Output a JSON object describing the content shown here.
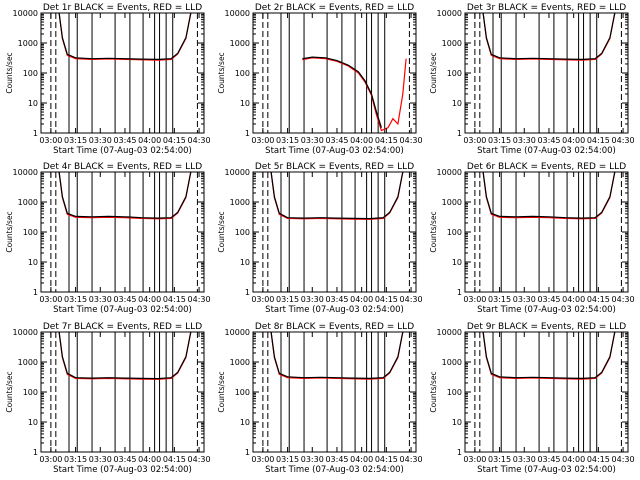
{
  "figure": {
    "x_tick_labels": [
      "03:00",
      "03:15",
      "03:30",
      "03:45",
      "04:00",
      "04:15",
      "04:30"
    ],
    "y_tick_labels": [
      "1",
      "10",
      "100",
      "1000",
      "10000"
    ],
    "colors": {
      "events": "#000000",
      "lld": "#ff0000",
      "axes": "#000000",
      "background": "#ffffff"
    }
  },
  "chart_data": [
    {
      "type": "line",
      "title": "Det 1r BLACK = Events, RED = LLD",
      "xlabel": "Start Time (07-Aug-03 02:54:00)",
      "ylabel": "Counts/sec",
      "y_scale": "log",
      "xlim": [
        "02:54",
        "04:33"
      ],
      "ylim": [
        1,
        10000
      ],
      "grid": false,
      "solid_markers": [
        "03:11",
        "03:16",
        "03:25",
        "03:39",
        "03:48",
        "03:56",
        "04:03",
        "04:06",
        "04:10",
        "04:14"
      ],
      "dashed_markers": [
        "03:00",
        "03:03",
        "04:29"
      ],
      "series": [
        {
          "name": "Events",
          "color": "#000000",
          "x": [
            "03:05",
            "03:07",
            "03:10",
            "03:15",
            "03:25",
            "03:35",
            "03:45",
            "03:55",
            "04:05",
            "04:13",
            "04:17",
            "04:22",
            "04:25"
          ],
          "y": [
            10000,
            1500,
            420,
            320,
            300,
            310,
            300,
            290,
            285,
            300,
            450,
            1500,
            10000
          ]
        },
        {
          "name": "LLD",
          "color": "#ff0000",
          "x": [
            "03:05",
            "03:07",
            "03:10",
            "03:15",
            "03:25",
            "03:35",
            "03:45",
            "03:55",
            "04:05",
            "04:13",
            "04:17",
            "04:22",
            "04:25"
          ],
          "y": [
            10000,
            1400,
            390,
            300,
            285,
            295,
            285,
            275,
            270,
            285,
            430,
            1400,
            10000
          ]
        }
      ]
    },
    {
      "type": "line",
      "title": "Det 2r BLACK = Events, RED = LLD",
      "xlabel": "Start Time (07-Aug-03 02:54:00)",
      "ylabel": "Counts/sec",
      "y_scale": "log",
      "xlim": [
        "02:54",
        "04:33"
      ],
      "ylim": [
        1,
        10000
      ],
      "grid": false,
      "solid_markers": [
        "03:11",
        "03:16",
        "03:25",
        "03:39",
        "03:48",
        "03:56",
        "04:03",
        "04:06",
        "04:10",
        "04:14"
      ],
      "dashed_markers": [
        "03:00",
        "03:03",
        "04:29"
      ],
      "series": [
        {
          "name": "Events",
          "color": "#000000",
          "x": [
            "03:24",
            "03:30",
            "03:38",
            "03:45",
            "03:52",
            "03:58",
            "04:02",
            "04:06",
            "04:09",
            "04:12"
          ],
          "y": [
            300,
            340,
            320,
            260,
            180,
            110,
            55,
            20,
            5,
            1.5
          ]
        },
        {
          "name": "LLD",
          "color": "#ff0000",
          "x": [
            "03:24",
            "03:30",
            "03:38",
            "03:45",
            "03:52",
            "03:58",
            "04:02",
            "04:06",
            "04:09",
            "04:12",
            "04:16",
            "04:19",
            "04:22",
            "04:25",
            "04:27"
          ],
          "y": [
            280,
            320,
            300,
            245,
            170,
            100,
            50,
            18,
            4,
            1.2,
            1.5,
            3,
            2,
            20,
            300
          ]
        }
      ]
    },
    {
      "type": "line",
      "title": "Det 3r BLACK = Events, RED = LLD",
      "xlabel": "Start Time (07-Aug-03 02:54:00)",
      "ylabel": "Counts/sec",
      "y_scale": "log",
      "xlim": [
        "02:54",
        "04:33"
      ],
      "ylim": [
        1,
        10000
      ],
      "grid": false,
      "solid_markers": [
        "03:11",
        "03:16",
        "03:25",
        "03:39",
        "03:48",
        "03:56",
        "04:03",
        "04:06",
        "04:10",
        "04:14"
      ],
      "dashed_markers": [
        "03:00",
        "03:03",
        "04:29"
      ],
      "series": [
        {
          "name": "Events",
          "color": "#000000",
          "x": [
            "03:05",
            "03:07",
            "03:10",
            "03:15",
            "03:25",
            "03:35",
            "03:45",
            "03:55",
            "04:05",
            "04:13",
            "04:17",
            "04:22",
            "04:25"
          ],
          "y": [
            10000,
            1500,
            420,
            320,
            300,
            310,
            300,
            290,
            285,
            300,
            450,
            1500,
            10000
          ]
        },
        {
          "name": "LLD",
          "color": "#ff0000",
          "x": [
            "03:05",
            "03:07",
            "03:10",
            "03:15",
            "03:25",
            "03:35",
            "03:45",
            "03:55",
            "04:05",
            "04:13",
            "04:17",
            "04:22",
            "04:25"
          ],
          "y": [
            10000,
            1400,
            390,
            300,
            285,
            295,
            285,
            275,
            270,
            285,
            430,
            1400,
            10000
          ]
        }
      ]
    },
    {
      "type": "line",
      "title": "Det 4r BLACK = Events, RED = LLD",
      "xlabel": "Start Time (07-Aug-03 02:54:00)",
      "ylabel": "Counts/sec",
      "y_scale": "log",
      "xlim": [
        "02:54",
        "04:33"
      ],
      "ylim": [
        1,
        10000
      ],
      "grid": false,
      "solid_markers": [
        "03:11",
        "03:16",
        "03:25",
        "03:39",
        "03:48",
        "03:56",
        "04:03",
        "04:06",
        "04:10",
        "04:14"
      ],
      "dashed_markers": [
        "03:00",
        "03:03",
        "04:29"
      ],
      "series": [
        {
          "name": "Events",
          "color": "#000000",
          "x": [
            "03:05",
            "03:07",
            "03:10",
            "03:15",
            "03:25",
            "03:35",
            "03:45",
            "03:55",
            "04:05",
            "04:13",
            "04:17",
            "04:22",
            "04:25"
          ],
          "y": [
            10000,
            1500,
            420,
            330,
            320,
            330,
            320,
            300,
            290,
            300,
            450,
            1500,
            10000
          ]
        },
        {
          "name": "LLD",
          "color": "#ff0000",
          "x": [
            "03:05",
            "03:07",
            "03:10",
            "03:15",
            "03:25",
            "03:35",
            "03:45",
            "03:55",
            "04:05",
            "04:13",
            "04:17",
            "04:22",
            "04:25"
          ],
          "y": [
            10000,
            1400,
            390,
            310,
            300,
            310,
            300,
            285,
            275,
            285,
            430,
            1400,
            10000
          ]
        }
      ]
    },
    {
      "type": "line",
      "title": "Det 5r BLACK = Events, RED = LLD",
      "xlabel": "Start Time (07-Aug-03 02:54:00)",
      "ylabel": "Counts/sec",
      "y_scale": "log",
      "xlim": [
        "02:54",
        "04:33"
      ],
      "ylim": [
        1,
        10000
      ],
      "grid": false,
      "solid_markers": [
        "03:11",
        "03:16",
        "03:25",
        "03:39",
        "03:48",
        "03:56",
        "04:03",
        "04:06",
        "04:10",
        "04:14"
      ],
      "dashed_markers": [
        "03:00",
        "03:03",
        "04:29"
      ],
      "series": [
        {
          "name": "Events",
          "color": "#000000",
          "x": [
            "03:05",
            "03:07",
            "03:10",
            "03:15",
            "03:25",
            "03:35",
            "03:45",
            "03:55",
            "04:05",
            "04:13",
            "04:17",
            "04:22",
            "04:25"
          ],
          "y": [
            10000,
            1500,
            420,
            300,
            290,
            300,
            290,
            285,
            280,
            300,
            450,
            1500,
            10000
          ]
        },
        {
          "name": "LLD",
          "color": "#ff0000",
          "x": [
            "03:05",
            "03:07",
            "03:10",
            "03:15",
            "03:25",
            "03:35",
            "03:45",
            "03:55",
            "04:05",
            "04:13",
            "04:17",
            "04:22",
            "04:25"
          ],
          "y": [
            10000,
            1400,
            390,
            285,
            275,
            285,
            275,
            270,
            265,
            285,
            430,
            1400,
            10000
          ]
        }
      ]
    },
    {
      "type": "line",
      "title": "Det 6r BLACK = Events, RED = LLD",
      "xlabel": "Start Time (07-Aug-03 02:54:00)",
      "ylabel": "Counts/sec",
      "y_scale": "log",
      "xlim": [
        "02:54",
        "04:33"
      ],
      "ylim": [
        1,
        10000
      ],
      "grid": false,
      "solid_markers": [
        "03:11",
        "03:16",
        "03:25",
        "03:39",
        "03:48",
        "03:56",
        "04:03",
        "04:06",
        "04:10",
        "04:14"
      ],
      "dashed_markers": [
        "03:00",
        "03:03",
        "04:29"
      ],
      "series": [
        {
          "name": "Events",
          "color": "#000000",
          "x": [
            "03:05",
            "03:07",
            "03:10",
            "03:15",
            "03:25",
            "03:35",
            "03:45",
            "03:55",
            "04:05",
            "04:13",
            "04:17",
            "04:22",
            "04:25"
          ],
          "y": [
            10000,
            1500,
            420,
            330,
            320,
            330,
            320,
            300,
            290,
            300,
            450,
            1500,
            10000
          ]
        },
        {
          "name": "LLD",
          "color": "#ff0000",
          "x": [
            "03:05",
            "03:07",
            "03:10",
            "03:15",
            "03:25",
            "03:35",
            "03:45",
            "03:55",
            "04:05",
            "04:13",
            "04:17",
            "04:22",
            "04:25"
          ],
          "y": [
            10000,
            1400,
            390,
            310,
            300,
            310,
            300,
            285,
            275,
            285,
            430,
            1400,
            10000
          ]
        }
      ]
    },
    {
      "type": "line",
      "title": "Det 7r BLACK = Events, RED = LLD",
      "xlabel": "Start Time (07-Aug-03 02:54:00)",
      "ylabel": "Counts/sec",
      "y_scale": "log",
      "xlim": [
        "02:54",
        "04:33"
      ],
      "ylim": [
        1,
        10000
      ],
      "grid": false,
      "solid_markers": [
        "03:11",
        "03:16",
        "03:25",
        "03:39",
        "03:48",
        "03:56",
        "04:03",
        "04:06",
        "04:10",
        "04:14"
      ],
      "dashed_markers": [
        "03:00",
        "03:03",
        "04:29"
      ],
      "series": [
        {
          "name": "Events",
          "color": "#000000",
          "x": [
            "03:05",
            "03:07",
            "03:10",
            "03:15",
            "03:25",
            "03:35",
            "03:45",
            "03:55",
            "04:05",
            "04:13",
            "04:17",
            "04:22",
            "04:25"
          ],
          "y": [
            10000,
            1500,
            420,
            300,
            290,
            300,
            290,
            285,
            280,
            300,
            450,
            1500,
            10000
          ]
        },
        {
          "name": "LLD",
          "color": "#ff0000",
          "x": [
            "03:05",
            "03:07",
            "03:10",
            "03:15",
            "03:25",
            "03:35",
            "03:45",
            "03:55",
            "04:05",
            "04:13",
            "04:17",
            "04:22",
            "04:25"
          ],
          "y": [
            10000,
            1400,
            390,
            285,
            275,
            285,
            275,
            270,
            265,
            285,
            430,
            1400,
            10000
          ]
        }
      ]
    },
    {
      "type": "line",
      "title": "Det 8r BLACK = Events, RED = LLD",
      "xlabel": "Start Time (07-Aug-03 02:54:00)",
      "ylabel": "Counts/sec",
      "y_scale": "log",
      "xlim": [
        "02:54",
        "04:33"
      ],
      "ylim": [
        1,
        10000
      ],
      "grid": false,
      "solid_markers": [
        "03:11",
        "03:16",
        "03:25",
        "03:39",
        "03:48",
        "03:56",
        "04:03",
        "04:06",
        "04:10",
        "04:14"
      ],
      "dashed_markers": [
        "03:00",
        "03:03",
        "04:29"
      ],
      "series": [
        {
          "name": "Events",
          "color": "#000000",
          "x": [
            "03:05",
            "03:07",
            "03:10",
            "03:15",
            "03:25",
            "03:35",
            "03:45",
            "03:55",
            "04:05",
            "04:13",
            "04:17",
            "04:22",
            "04:25"
          ],
          "y": [
            10000,
            1500,
            420,
            320,
            300,
            310,
            300,
            290,
            285,
            300,
            450,
            1500,
            10000
          ]
        },
        {
          "name": "LLD",
          "color": "#ff0000",
          "x": [
            "03:05",
            "03:07",
            "03:10",
            "03:15",
            "03:25",
            "03:35",
            "03:45",
            "03:55",
            "04:05",
            "04:13",
            "04:17",
            "04:22",
            "04:25"
          ],
          "y": [
            10000,
            1400,
            390,
            300,
            285,
            295,
            285,
            275,
            270,
            285,
            430,
            1400,
            10000
          ]
        }
      ]
    },
    {
      "type": "line",
      "title": "Det 9r BLACK = Events, RED = LLD",
      "xlabel": "Start Time (07-Aug-03 02:54:00)",
      "ylabel": "Counts/sec",
      "y_scale": "log",
      "xlim": [
        "02:54",
        "04:33"
      ],
      "ylim": [
        1,
        10000
      ],
      "grid": false,
      "solid_markers": [
        "03:11",
        "03:16",
        "03:25",
        "03:39",
        "03:48",
        "03:56",
        "04:03",
        "04:06",
        "04:10",
        "04:14"
      ],
      "dashed_markers": [
        "03:00",
        "03:03",
        "04:29"
      ],
      "series": [
        {
          "name": "Events",
          "color": "#000000",
          "x": [
            "03:05",
            "03:07",
            "03:10",
            "03:15",
            "03:25",
            "03:35",
            "03:45",
            "03:55",
            "04:05",
            "04:13",
            "04:17",
            "04:22",
            "04:25"
          ],
          "y": [
            10000,
            1500,
            420,
            320,
            300,
            310,
            300,
            290,
            285,
            300,
            450,
            1500,
            10000
          ]
        },
        {
          "name": "LLD",
          "color": "#ff0000",
          "x": [
            "03:05",
            "03:07",
            "03:10",
            "03:15",
            "03:25",
            "03:35",
            "03:45",
            "03:55",
            "04:05",
            "04:13",
            "04:17",
            "04:22",
            "04:25"
          ],
          "y": [
            10000,
            1400,
            390,
            300,
            285,
            295,
            285,
            275,
            270,
            285,
            430,
            1400,
            10000
          ]
        }
      ]
    }
  ]
}
